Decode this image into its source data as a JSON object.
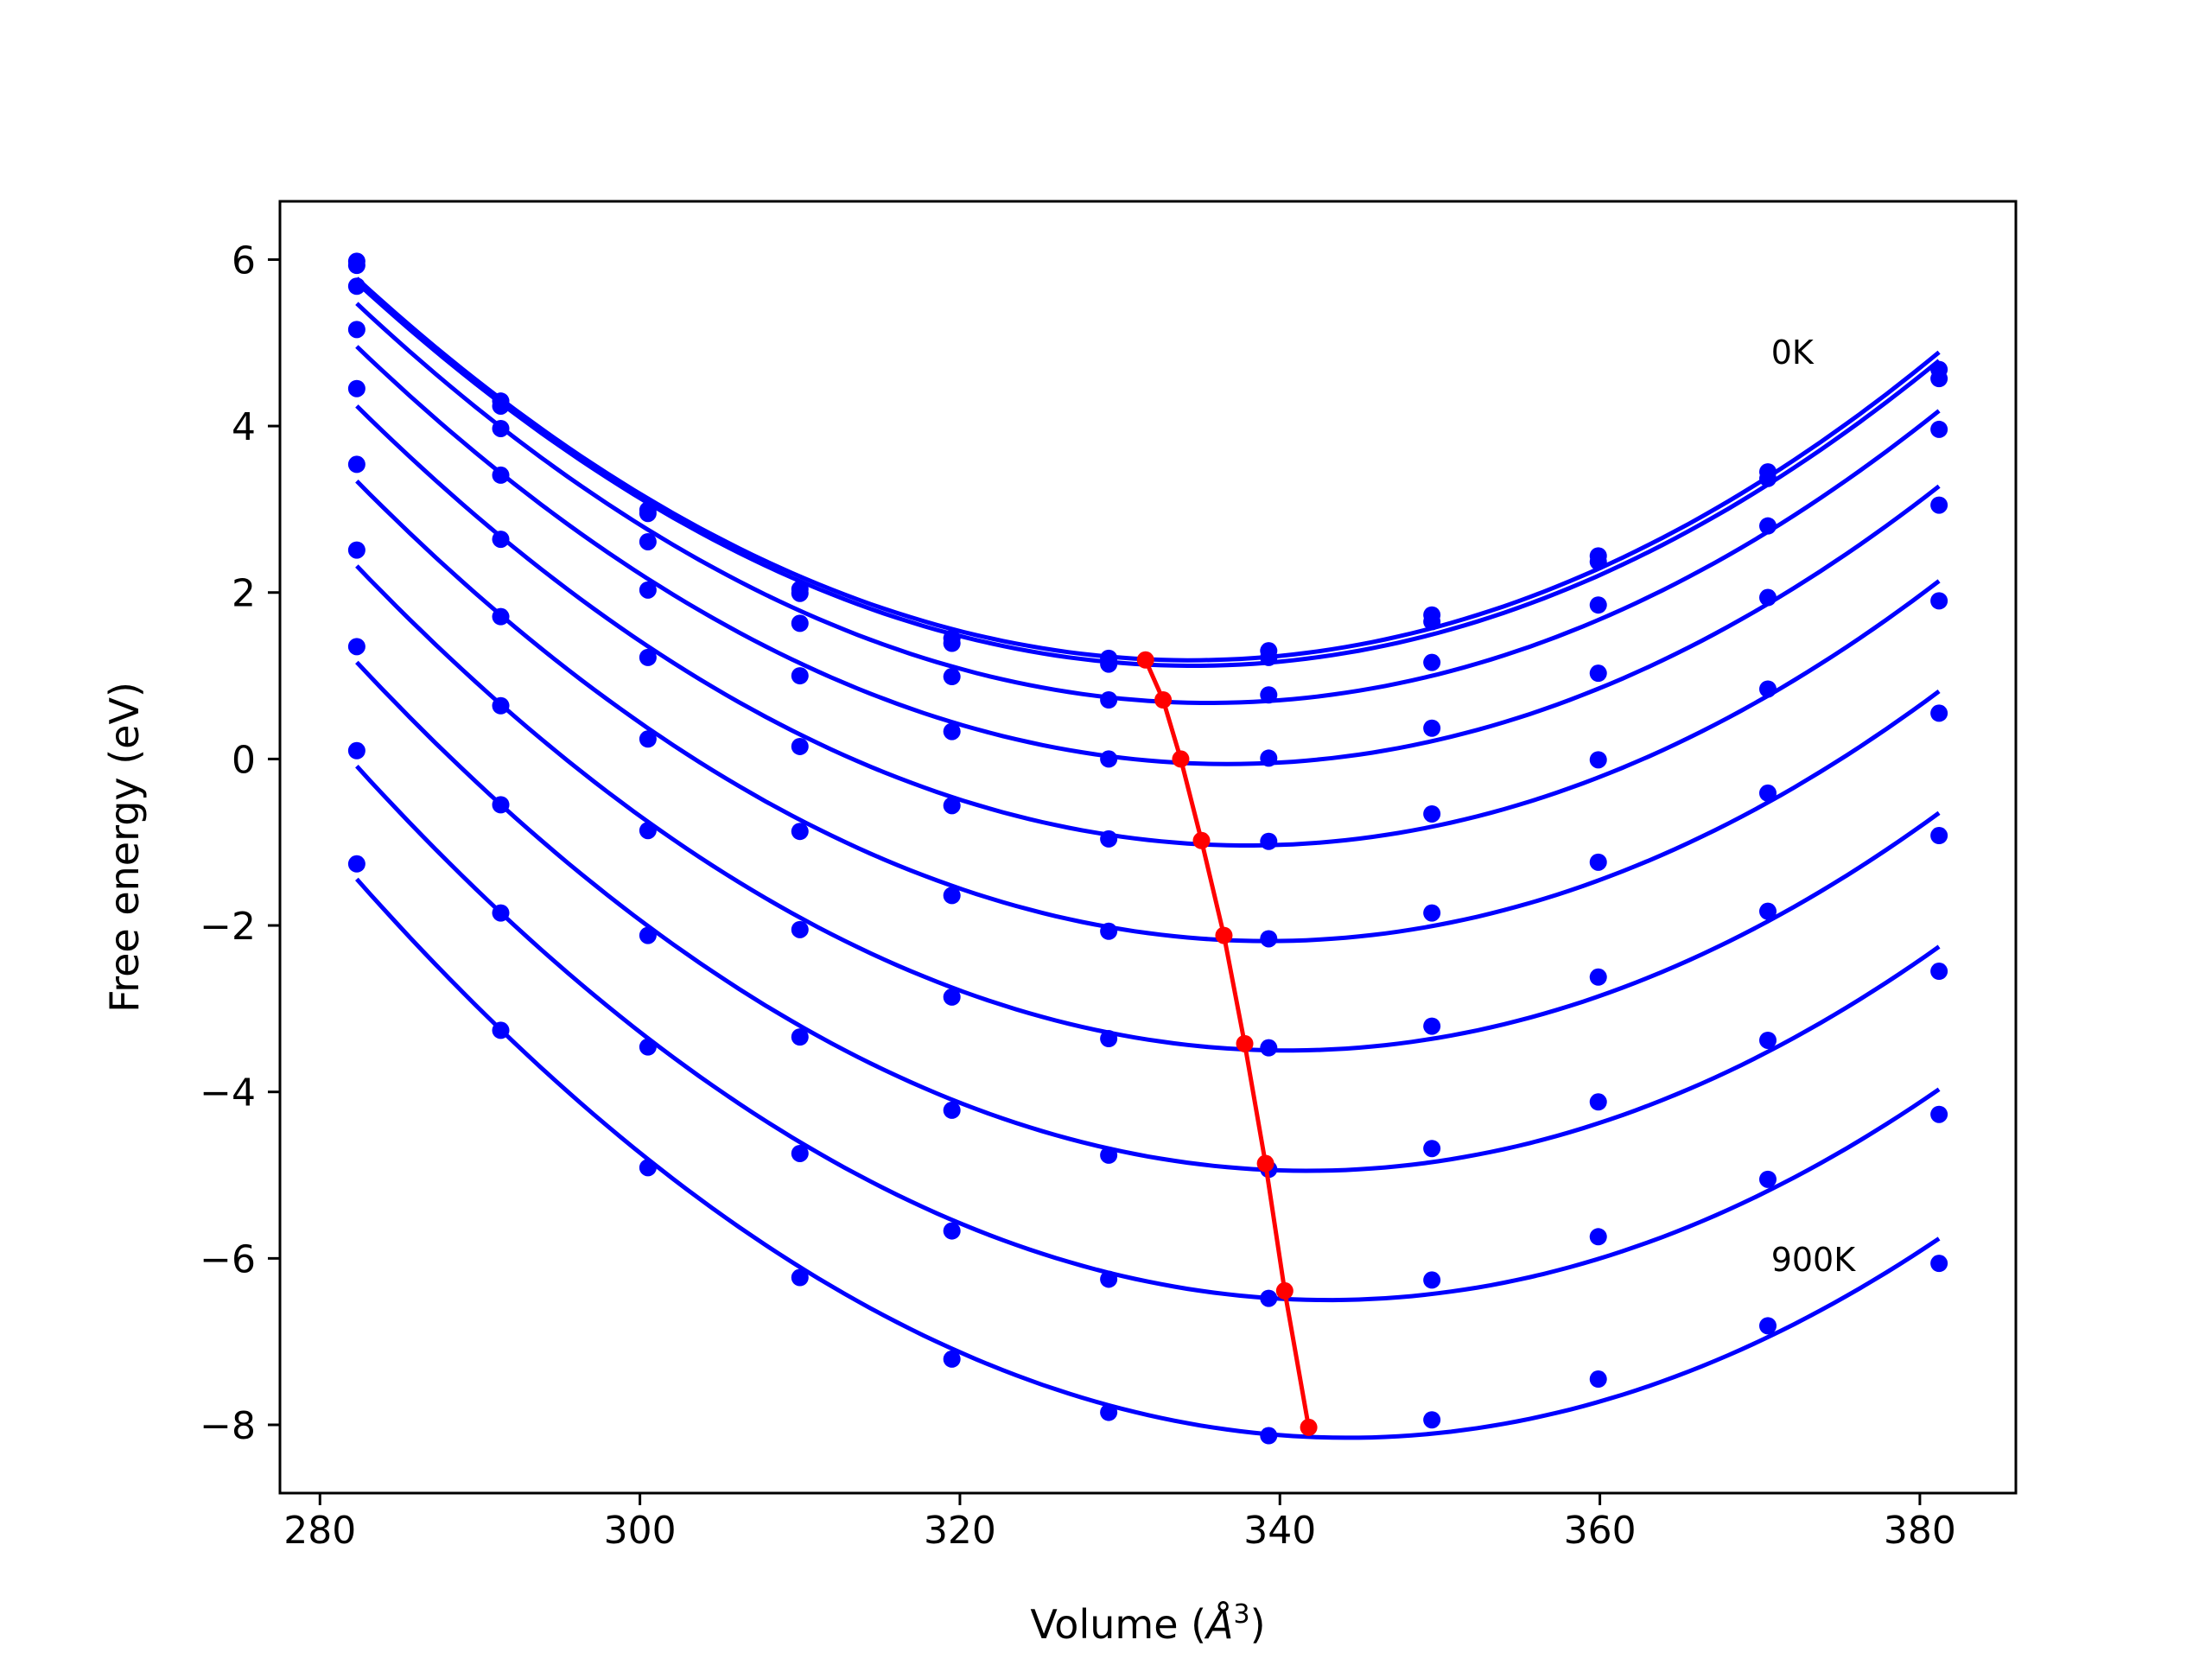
{
  "chart_data": {
    "type": "line",
    "xlabel": "Volume (",
    "xlabel_unit_base": "Å",
    "xlabel_unit_sup": "3",
    "xlabel_close": ")",
    "ylabel": "Free energy (eV)",
    "xlim": [
      277.5,
      386
    ],
    "ylim": [
      -8.82,
      6.7
    ],
    "xticks": [
      280,
      300,
      320,
      340,
      360,
      380
    ],
    "yticks": [
      -8,
      -6,
      -4,
      -2,
      0,
      2,
      4,
      6
    ],
    "xtick_labels": [
      "280",
      "300",
      "320",
      "340",
      "360",
      "380"
    ],
    "ytick_labels": [
      "−8",
      "−6",
      "−4",
      "−2",
      "0",
      "2",
      "4",
      "6"
    ],
    "grid": false,
    "curve_color": "#0000ff",
    "minimum_line_color": "#ff0000",
    "x": [
      282.3,
      291.3,
      300.5,
      310.0,
      319.5,
      329.3,
      339.3,
      349.5,
      359.9,
      370.5,
      381.2
    ],
    "series": [
      {
        "values": [
          5.98,
          4.3,
          2.99,
          2.04,
          1.45,
          1.21,
          1.3,
          1.73,
          2.44,
          3.45,
          4.68
        ]
      },
      {
        "values": [
          5.93,
          4.24,
          2.95,
          1.99,
          1.39,
          1.14,
          1.22,
          1.65,
          2.37,
          3.37,
          4.57
        ]
      },
      {
        "values": [
          5.68,
          3.97,
          2.61,
          1.63,
          0.99,
          0.71,
          0.77,
          1.16,
          1.85,
          2.8,
          3.96
        ]
      },
      {
        "values": [
          5.16,
          3.41,
          2.03,
          1.0,
          0.33,
          0.0,
          0.01,
          0.37,
          1.03,
          1.94,
          3.05
        ]
      },
      {
        "values": [
          4.45,
          2.64,
          1.22,
          0.15,
          -0.56,
          -0.96,
          -0.99,
          -0.66,
          -0.01,
          0.84,
          1.9
        ]
      },
      {
        "values": [
          3.54,
          1.71,
          0.24,
          -0.87,
          -1.64,
          -2.07,
          -2.16,
          -1.85,
          -1.24,
          -0.41,
          0.55
        ]
      },
      {
        "values": [
          2.51,
          0.64,
          -0.86,
          -2.05,
          -2.86,
          -3.36,
          -3.47,
          -3.21,
          -2.62,
          -1.83,
          -0.92
        ]
      },
      {
        "values": [
          1.35,
          -0.55,
          -2.12,
          -3.34,
          -4.22,
          -4.76,
          -4.93,
          -4.68,
          -4.12,
          -3.38,
          -2.55
        ]
      },
      {
        "values": [
          0.1,
          -1.85,
          -3.46,
          -4.74,
          -5.67,
          -6.25,
          -6.48,
          -6.26,
          -5.74,
          -5.05,
          -4.27
        ]
      },
      {
        "values": [
          -1.26,
          -3.26,
          -4.91,
          -6.23,
          -7.21,
          -7.85,
          -8.13,
          -7.94,
          -7.45,
          -6.81,
          -6.06
        ]
      }
    ],
    "minimum_line": {
      "x": [
        331.6,
        332.7,
        333.8,
        335.1,
        336.5,
        337.8,
        339.1,
        340.3,
        341.8
      ],
      "y": [
        1.19,
        0.71,
        0.0,
        -0.98,
        -2.12,
        -3.42,
        -4.86,
        -6.39,
        -8.03
      ]
    },
    "annotations": [
      {
        "text": "0K",
        "x": 370.7,
        "y": 4.75
      },
      {
        "text": "900K",
        "x": 370.7,
        "y": -6.15
      }
    ]
  }
}
